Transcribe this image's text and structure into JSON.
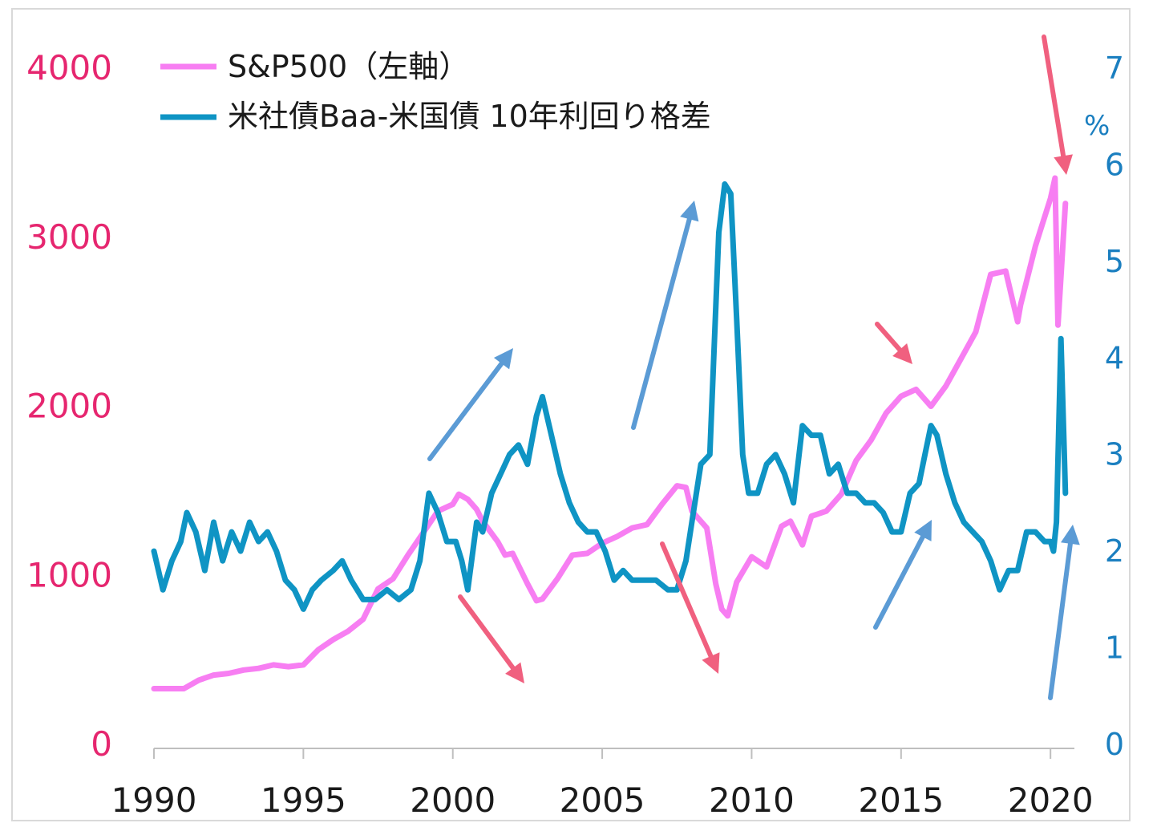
{
  "chart_data": {
    "type": "line",
    "title": "",
    "xlabel": "",
    "x_ticks": [
      "1990",
      "1995",
      "2000",
      "2005",
      "2010",
      "2015",
      "2020"
    ],
    "xlim": [
      1990,
      2020.8
    ],
    "y_left": {
      "label": "",
      "ticks": [
        "0",
        "1000",
        "2000",
        "3000",
        "4000"
      ],
      "ylim": [
        0,
        4000
      ],
      "color": "#e6266f"
    },
    "y_right": {
      "label": "",
      "unit": "%",
      "ticks": [
        "0",
        "1",
        "2",
        "3",
        "4",
        "5",
        "6",
        "7"
      ],
      "ylim": [
        0,
        7
      ],
      "color": "#1b7fc0"
    },
    "legend": {
      "placement": "top-left"
    },
    "series": [
      {
        "name": "S&P500（左軸）",
        "axis": "left",
        "color": "#f77ef2",
        "x": [
          1990.0,
          1990.5,
          1991.0,
          1991.5,
          1992.0,
          1992.5,
          1993.0,
          1993.5,
          1994.0,
          1994.5,
          1995.0,
          1995.5,
          1996.0,
          1996.5,
          1997.0,
          1997.5,
          1998.0,
          1998.5,
          1999.0,
          1999.5,
          2000.0,
          2000.2,
          2000.5,
          2000.8,
          2001.0,
          2001.5,
          2001.75,
          2002.0,
          2002.5,
          2002.8,
          2003.0,
          2003.5,
          2004.0,
          2004.5,
          2005.0,
          2005.5,
          2006.0,
          2006.5,
          2007.0,
          2007.5,
          2007.8,
          2008.0,
          2008.5,
          2008.8,
          2009.0,
          2009.2,
          2009.5,
          2010.0,
          2010.5,
          2011.0,
          2011.3,
          2011.7,
          2012.0,
          2012.5,
          2013.0,
          2013.5,
          2014.0,
          2014.5,
          2015.0,
          2015.5,
          2016.0,
          2016.5,
          2017.0,
          2017.5,
          2018.0,
          2018.5,
          2018.9,
          2019.0,
          2019.5,
          2020.0,
          2020.15,
          2020.25,
          2020.5
        ],
        "y": [
          330,
          330,
          330,
          380,
          410,
          420,
          440,
          450,
          470,
          460,
          470,
          560,
          620,
          670,
          740,
          920,
          980,
          1120,
          1250,
          1380,
          1420,
          1480,
          1450,
          1390,
          1320,
          1200,
          1120,
          1130,
          950,
          850,
          860,
          980,
          1120,
          1130,
          1190,
          1230,
          1280,
          1300,
          1420,
          1530,
          1520,
          1380,
          1280,
          950,
          800,
          760,
          960,
          1110,
          1050,
          1290,
          1320,
          1180,
          1350,
          1380,
          1480,
          1680,
          1800,
          1960,
          2060,
          2100,
          2000,
          2120,
          2280,
          2440,
          2780,
          2800,
          2500,
          2600,
          2950,
          3230,
          3350,
          2480,
          3200
        ]
      },
      {
        "name": "米社債Baa-米国債 10年利回り格差",
        "axis": "right",
        "color": "#0f94c4",
        "x": [
          1990.0,
          1990.3,
          1990.6,
          1990.9,
          1991.1,
          1991.4,
          1991.7,
          1992.0,
          1992.3,
          1992.6,
          1992.9,
          1993.2,
          1993.5,
          1993.8,
          1994.1,
          1994.4,
          1994.7,
          1995.0,
          1995.3,
          1995.6,
          1996.0,
          1996.3,
          1996.6,
          1997.0,
          1997.4,
          1997.8,
          1998.2,
          1998.6,
          1998.9,
          1999.2,
          1999.5,
          1999.8,
          2000.1,
          2000.3,
          2000.5,
          2000.8,
          2001.0,
          2001.3,
          2001.6,
          2001.9,
          2002.2,
          2002.5,
          2002.8,
          2003.0,
          2003.3,
          2003.6,
          2003.9,
          2004.2,
          2004.5,
          2004.8,
          2005.1,
          2005.4,
          2005.7,
          2006.0,
          2006.4,
          2006.8,
          2007.2,
          2007.5,
          2007.8,
          2008.0,
          2008.3,
          2008.6,
          2008.9,
          2009.1,
          2009.3,
          2009.5,
          2009.7,
          2009.9,
          2010.2,
          2010.5,
          2010.8,
          2011.1,
          2011.4,
          2011.7,
          2012.0,
          2012.3,
          2012.6,
          2012.9,
          2013.2,
          2013.5,
          2013.8,
          2014.1,
          2014.4,
          2014.7,
          2015.0,
          2015.3,
          2015.6,
          2015.8,
          2016.0,
          2016.2,
          2016.5,
          2016.8,
          2017.1,
          2017.4,
          2017.7,
          2018.0,
          2018.3,
          2018.6,
          2018.9,
          2019.2,
          2019.5,
          2019.8,
          2020.0,
          2020.1,
          2020.2,
          2020.35,
          2020.5
        ],
        "y": [
          2.0,
          1.6,
          1.9,
          2.1,
          2.4,
          2.2,
          1.8,
          2.3,
          1.9,
          2.2,
          2.0,
          2.3,
          2.1,
          2.2,
          2.0,
          1.7,
          1.6,
          1.4,
          1.6,
          1.7,
          1.8,
          1.9,
          1.7,
          1.5,
          1.5,
          1.6,
          1.5,
          1.6,
          1.9,
          2.6,
          2.4,
          2.1,
          2.1,
          1.9,
          1.6,
          2.3,
          2.2,
          2.6,
          2.8,
          3.0,
          3.1,
          2.9,
          3.4,
          3.6,
          3.2,
          2.8,
          2.5,
          2.3,
          2.2,
          2.2,
          2.0,
          1.7,
          1.8,
          1.7,
          1.7,
          1.7,
          1.6,
          1.6,
          1.9,
          2.3,
          2.9,
          3.0,
          5.3,
          5.8,
          5.7,
          4.4,
          3.0,
          2.6,
          2.6,
          2.9,
          3.0,
          2.8,
          2.5,
          3.3,
          3.2,
          3.2,
          2.8,
          2.9,
          2.6,
          2.6,
          2.5,
          2.5,
          2.4,
          2.2,
          2.2,
          2.6,
          2.7,
          3.0,
          3.3,
          3.2,
          2.8,
          2.5,
          2.3,
          2.2,
          2.1,
          1.9,
          1.6,
          1.8,
          1.8,
          2.2,
          2.2,
          2.1,
          2.1,
          2.0,
          2.3,
          4.2,
          2.6
        ]
      }
    ]
  }
}
